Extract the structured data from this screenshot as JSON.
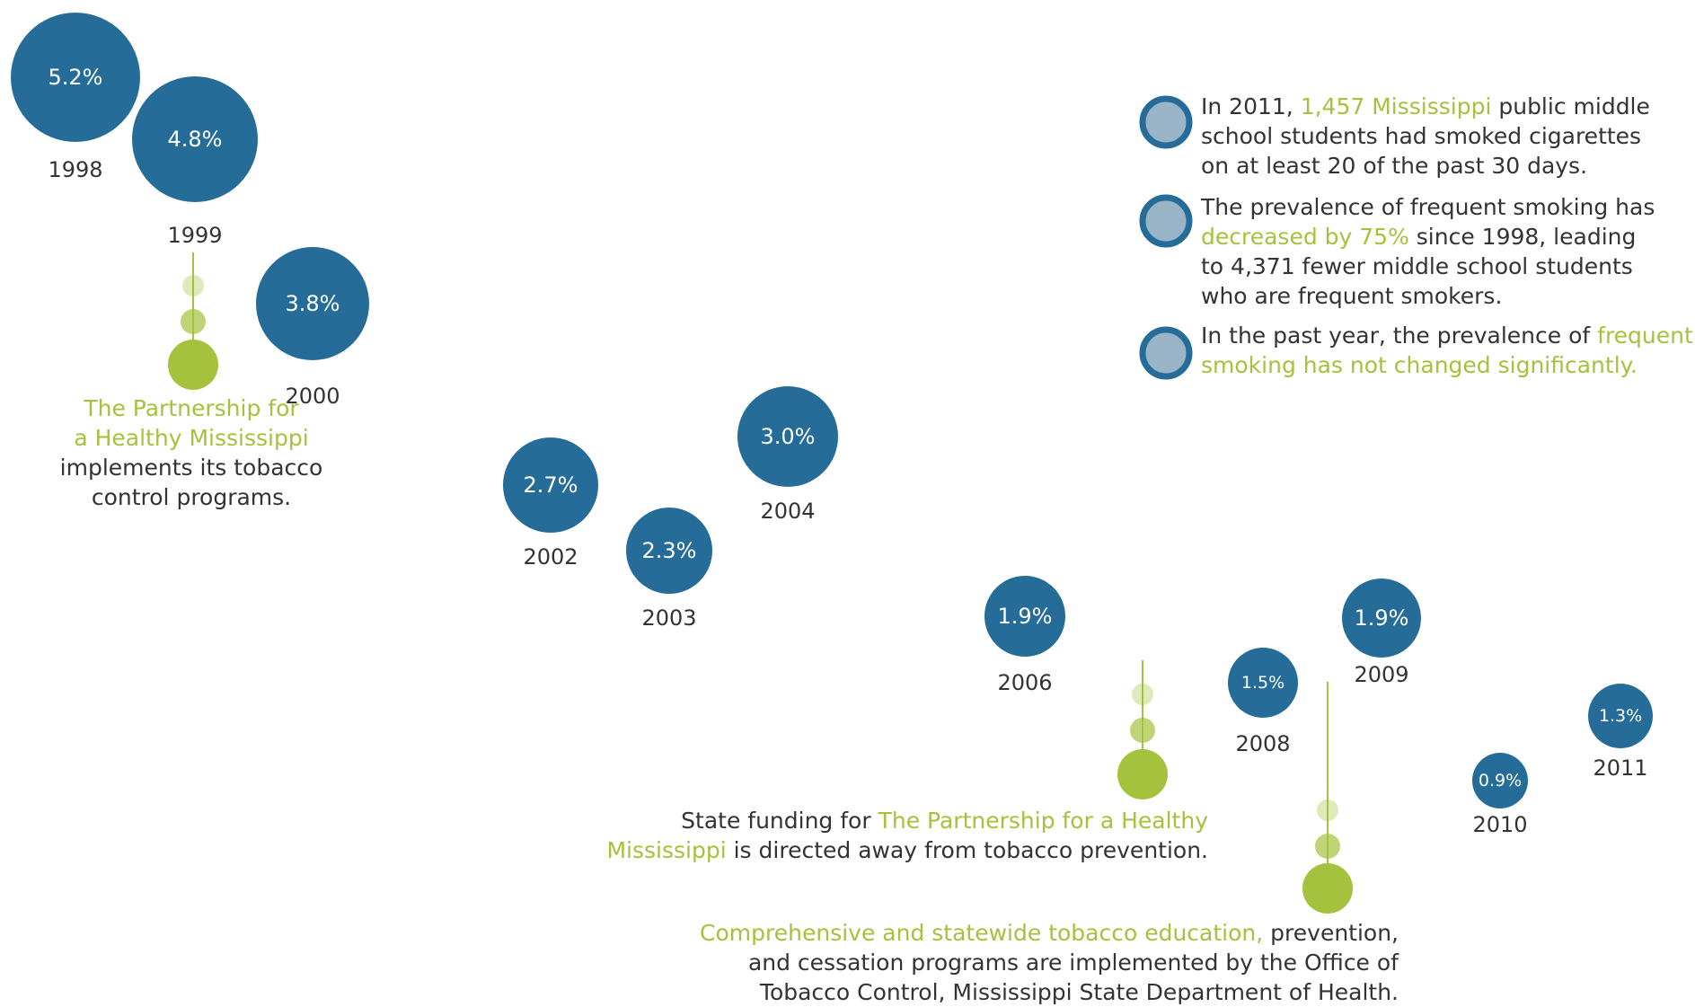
{
  "chart_data": {
    "type": "bubble",
    "title": "",
    "xlabel": "",
    "ylabel": "",
    "points": [
      {
        "year": "1998",
        "label": "5.2%",
        "value": 5.2
      },
      {
        "year": "1999",
        "label": "4.8%",
        "value": 4.8
      },
      {
        "year": "2000",
        "label": "3.8%",
        "value": 3.8
      },
      {
        "year": "2002",
        "label": "2.7%",
        "value": 2.7
      },
      {
        "year": "2003",
        "label": "2.3%",
        "value": 2.3
      },
      {
        "year": "2004",
        "label": "3.0%",
        "value": 3.0
      },
      {
        "year": "2006",
        "label": "1.9%",
        "value": 1.9
      },
      {
        "year": "2008",
        "label": "1.5%",
        "value": 1.5
      },
      {
        "year": "2009",
        "label": "1.9%",
        "value": 1.9
      },
      {
        "year": "2010",
        "label": "0.9%",
        "value": 0.9
      },
      {
        "year": "2011",
        "label": "1.3%",
        "value": 1.3
      }
    ],
    "colors": {
      "bubble": "#266c98",
      "accent": "#a4c23d",
      "text": "#333333",
      "fact_icon_fill": "#99b4c6",
      "fact_icon_ring": "#266c98"
    },
    "annotations": [
      {
        "year": "2000",
        "segments": [
          {
            "text": "The Partnership for",
            "highlight": true
          },
          {
            "text": "a Healthy Mississippi",
            "highlight": true
          },
          {
            "text": "implements its tobacco",
            "highlight": false
          },
          {
            "text": "control programs.",
            "highlight": false
          }
        ]
      },
      {
        "year": "2007",
        "segments": [
          {
            "text": "State funding for ",
            "highlight": false
          },
          {
            "text": "The Partnership for a Healthy",
            "highlight": true
          },
          {
            "text": "Mississippi",
            "highlight": true
          },
          {
            "text": " is directed away from tobacco prevention.",
            "highlight": false
          }
        ]
      },
      {
        "year": "2009",
        "segments": [
          {
            "text": "Comprehensive and statewide tobacco education,",
            "highlight": true
          },
          {
            "text": " prevention,",
            "highlight": false
          },
          {
            "text": "and cessation programs are implemented by the Office of",
            "highlight": false
          },
          {
            "text": "Tobacco Control, Mississippi State Department of Health.",
            "highlight": false
          }
        ]
      }
    ],
    "facts": [
      {
        "segments": [
          {
            "text": "In 2011, ",
            "highlight": false
          },
          {
            "text": "1,457 Mississippi",
            "highlight": true
          },
          {
            "text": " public middle",
            "highlight": false
          },
          {
            "text": "school students had smoked cigarettes",
            "highlight": false
          },
          {
            "text": "on at least 20 of the past 30 days.",
            "highlight": false
          }
        ]
      },
      {
        "segments": [
          {
            "text": "The prevalence of frequent smoking has",
            "highlight": false
          },
          {
            "text": "decreased by 75%",
            "highlight": true
          },
          {
            "text": " since 1998, leading",
            "highlight": false
          },
          {
            "text": "to 4,371 fewer middle school students",
            "highlight": false
          },
          {
            "text": "who are frequent smokers.",
            "highlight": false
          }
        ]
      },
      {
        "segments": [
          {
            "text": "In the past year, the prevalence of ",
            "highlight": false
          },
          {
            "text": "frequent",
            "highlight": true
          },
          {
            "text": "smoking has not changed significantly.",
            "highlight": true
          }
        ]
      }
    ]
  }
}
